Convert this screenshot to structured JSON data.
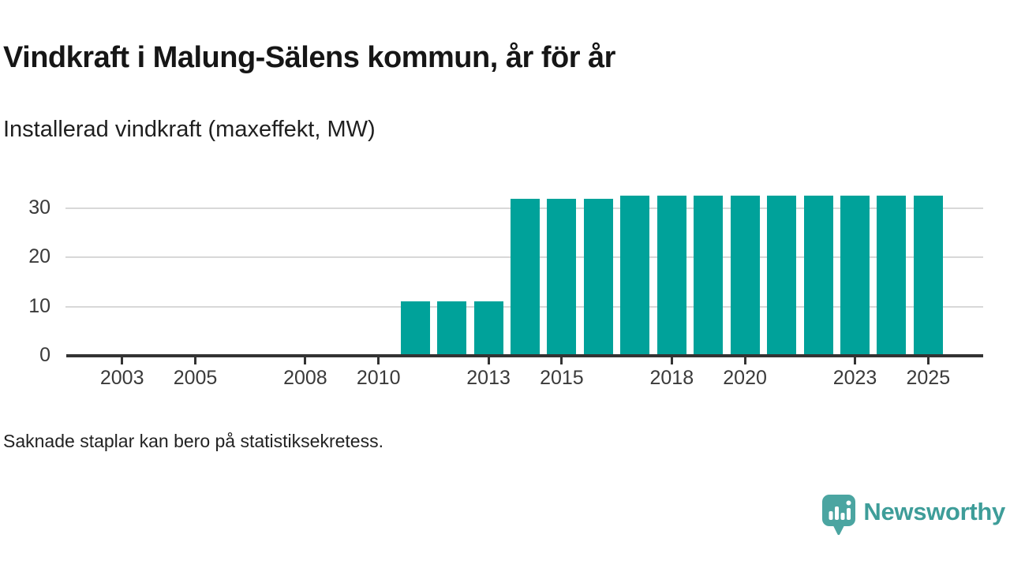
{
  "header": {
    "title": "Vindkraft i Malung-Sälens kommun, år för år",
    "subtitle": "Installerad vindkraft (maxeffekt, MW)"
  },
  "footnote": "Saknade staplar kan bero på statistiksekretess.",
  "branding": {
    "name": "Newsworthy",
    "icon": "newsworthy-speech-bubble-bar-chart-icon",
    "icon_color": "#4ba5a1",
    "text_color": "#3e9d99"
  },
  "chart_data": {
    "type": "bar",
    "title": "Vindkraft i Malung-Sälens kommun, år för år",
    "subtitle": "Installerad vindkraft (maxeffekt, MW)",
    "note": "Saknade staplar kan bero på statistiksekretess.",
    "unit": "MW",
    "xlabel": "",
    "ylabel": "",
    "categories": [
      2002,
      2003,
      2004,
      2005,
      2006,
      2007,
      2008,
      2009,
      2010,
      2011,
      2012,
      2013,
      2014,
      2015,
      2016,
      2017,
      2018,
      2019,
      2020,
      2021,
      2022,
      2023,
      2024,
      2025
    ],
    "values": [
      null,
      null,
      null,
      null,
      null,
      null,
      null,
      null,
      null,
      11,
      11,
      11,
      32,
      32,
      32,
      32.5,
      32.5,
      32.5,
      32.5,
      32.5,
      32.5,
      32.5,
      32.5,
      32.5
    ],
    "missing_values_meaning": "Saknade staplar kan bero på statistiksekretess.",
    "x_ticks": [
      2003,
      2005,
      2008,
      2010,
      2013,
      2015,
      2018,
      2020,
      2023,
      2025
    ],
    "y_ticks": [
      0,
      10,
      20,
      30
    ],
    "xlim": [
      2001.5,
      2026.5
    ],
    "ylim": [
      0,
      33.8
    ],
    "grid": "horizontal-only",
    "legend": "none",
    "bar_color": "#00a29a",
    "axis_color": "#333333",
    "grid_color": "#d8d8d8",
    "tick_label_color": "#3a3a3a"
  }
}
